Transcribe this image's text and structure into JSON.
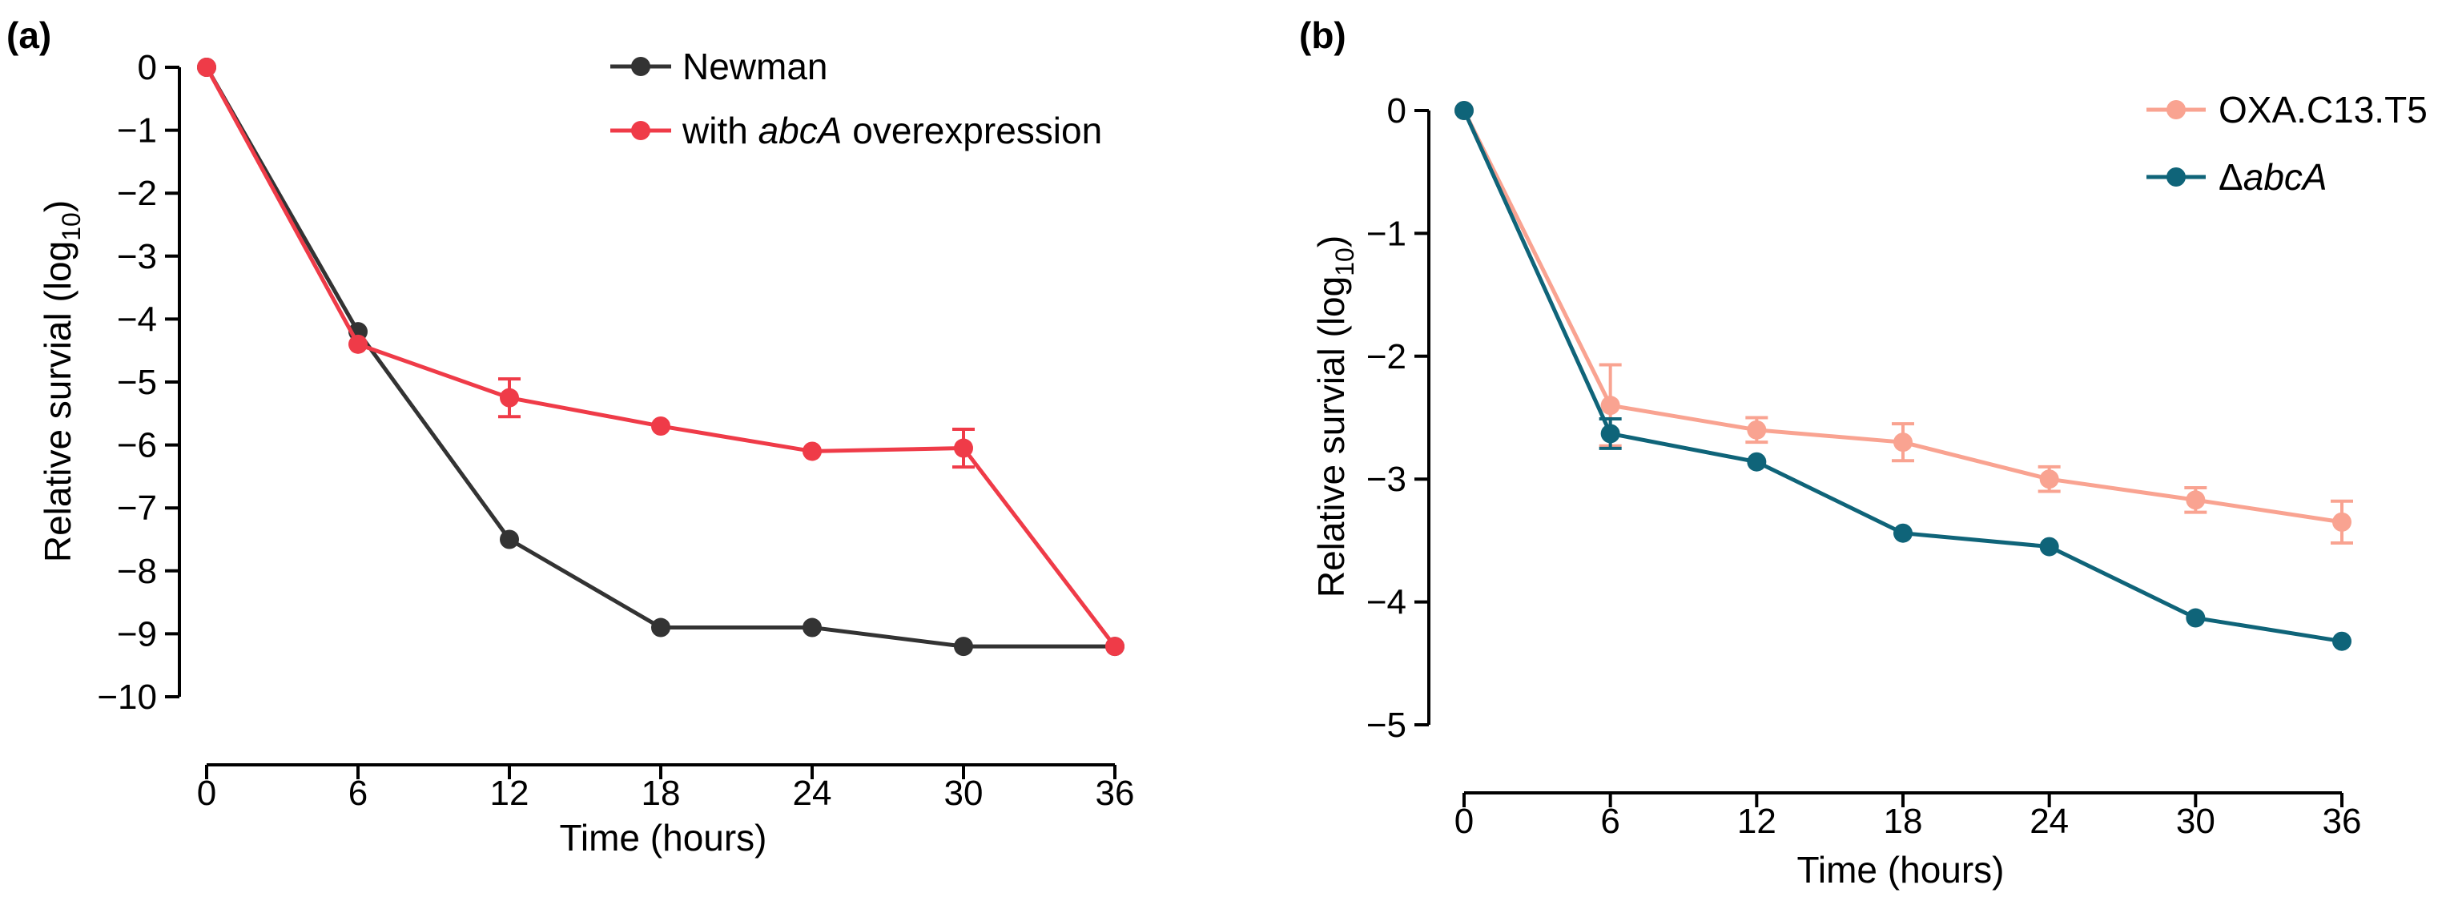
{
  "chart_data": [
    {
      "type": "line",
      "panel": "(a)",
      "xlabel": "Time (hours)",
      "ylabel_main": "Relative survial (log",
      "ylabel_sub": "10",
      "ylabel_close": ")",
      "x": [
        0,
        6,
        12,
        18,
        24,
        30,
        36
      ],
      "xlim": [
        0,
        36
      ],
      "ylim": [
        -10,
        0
      ],
      "yticks": [
        0,
        -1,
        -2,
        -3,
        -4,
        -5,
        -6,
        -7,
        -8,
        -9,
        -10
      ],
      "ytick_labels": [
        "0",
        "−1",
        "−2",
        "−3",
        "−4",
        "−5",
        "−6",
        "−7",
        "−8",
        "−9",
        "−10"
      ],
      "grid": false,
      "legend": "top-right",
      "series": [
        {
          "name": "Newman",
          "color": "#333333",
          "values": [
            0,
            -4.2,
            -7.5,
            -8.9,
            -8.9,
            -9.2,
            -9.2
          ],
          "errors": [
            0,
            0,
            0,
            0,
            0,
            0,
            0
          ]
        },
        {
          "name_prefix": "with ",
          "name_italic": "abcA",
          "name_suffix": " overexpression",
          "color": "#ef3b48",
          "values": [
            0,
            -4.4,
            -5.25,
            -5.7,
            -6.1,
            -6.05,
            -9.2
          ],
          "errors": [
            0,
            0,
            0.3,
            0,
            0,
            0.3,
            0
          ]
        }
      ]
    },
    {
      "type": "line",
      "panel": "(b)",
      "xlabel": "Time (hours)",
      "ylabel_main": "Relative survial (log",
      "ylabel_sub": "10",
      "ylabel_close": ")",
      "x": [
        0,
        6,
        12,
        18,
        24,
        30,
        36
      ],
      "xlim": [
        0,
        36
      ],
      "ylim": [
        -5,
        0
      ],
      "yticks": [
        0,
        -1,
        -2,
        -3,
        -4,
        -5
      ],
      "ytick_labels": [
        "0",
        "−1",
        "−2",
        "−3",
        "−4",
        "−5"
      ],
      "grid": false,
      "legend": "top-right",
      "series": [
        {
          "name": "OXA.C13.T5",
          "color": "#f9a391",
          "values": [
            0,
            -2.4,
            -2.6,
            -2.7,
            -3.0,
            -3.17,
            -3.35
          ],
          "errors": [
            0,
            0.33,
            0.1,
            0.15,
            0.1,
            0.1,
            0.17
          ]
        },
        {
          "name_prefix": "Δ",
          "name_italic": "abcA",
          "name_suffix": "",
          "color": "#0f6479",
          "values": [
            0,
            -2.63,
            -2.86,
            -3.44,
            -3.55,
            -4.13,
            -4.32
          ],
          "errors": [
            0,
            0.12,
            0,
            0,
            0,
            0,
            0
          ]
        }
      ]
    }
  ]
}
